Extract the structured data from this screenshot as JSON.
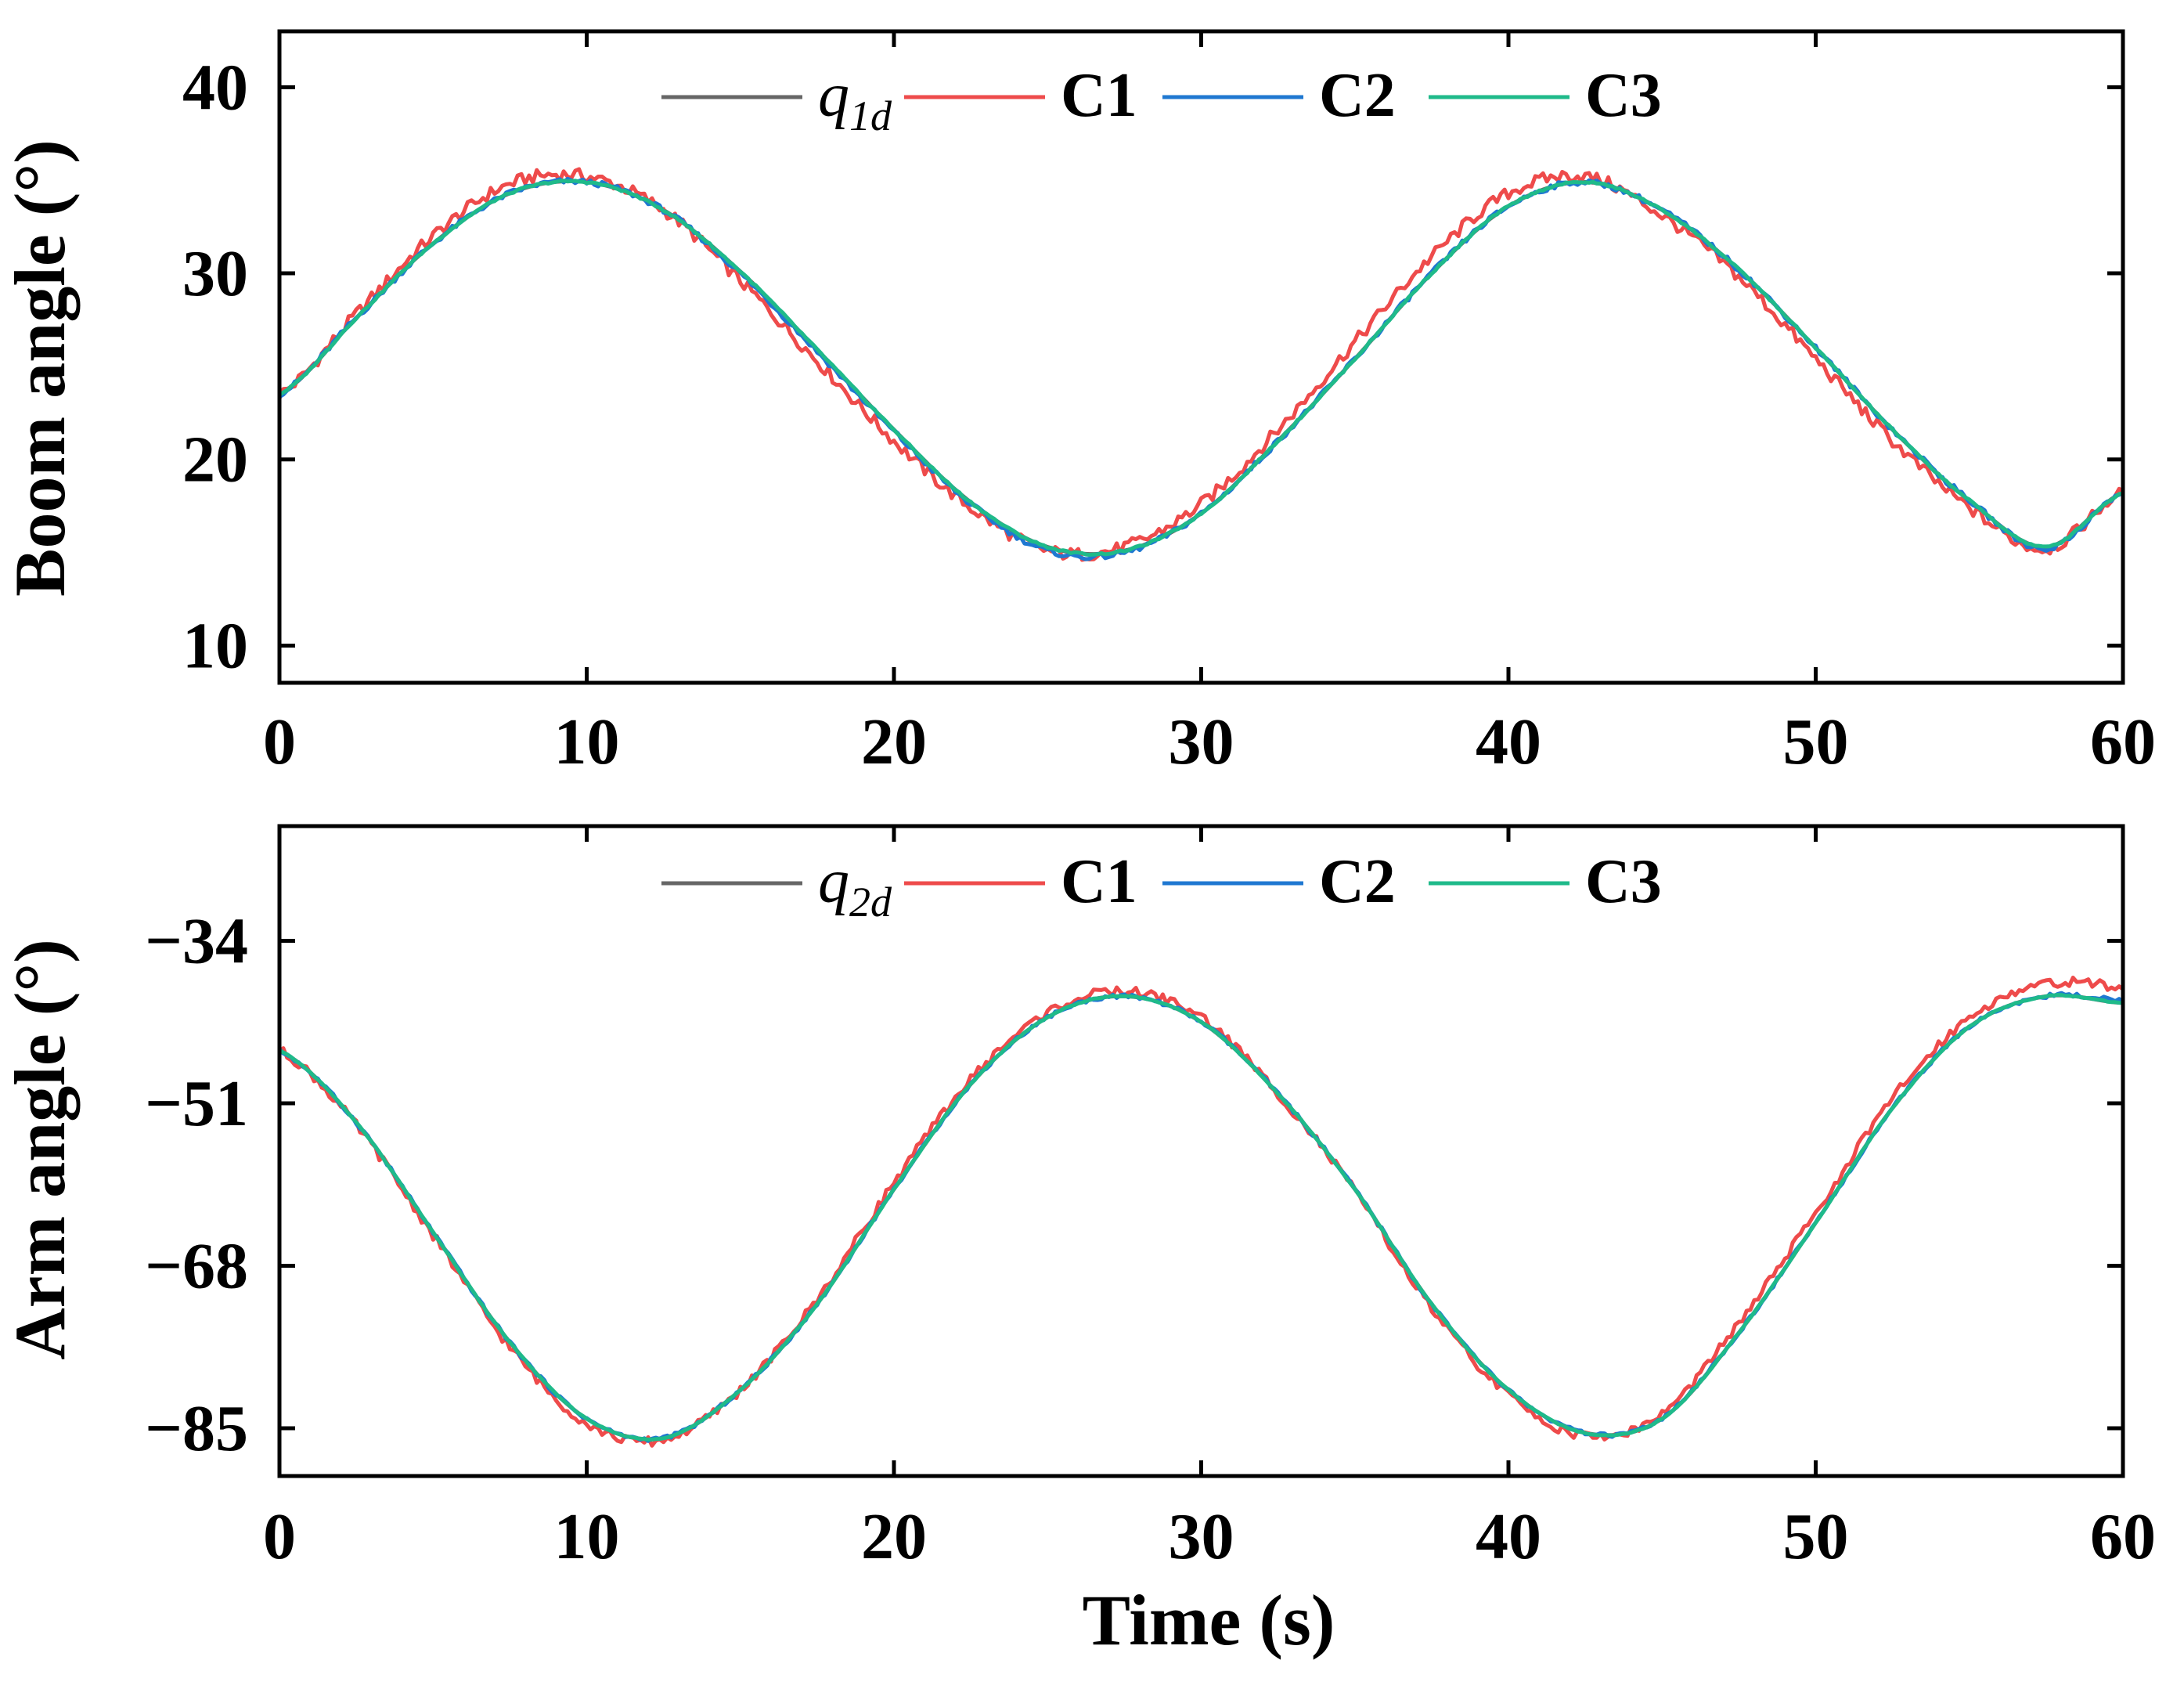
{
  "chart_data": [
    {
      "type": "line",
      "ylabel": "Boom angle (°)",
      "xlabel": "",
      "xlim": [
        0,
        60
      ],
      "ylim": [
        8,
        43
      ],
      "xticks": [
        "0",
        "10",
        "20",
        "30",
        "40",
        "50",
        "60"
      ],
      "yticks": [
        "40",
        "30",
        "20",
        "10"
      ],
      "legend": {
        "placement": "top-center",
        "entries": [
          {
            "name": "q",
            "sub": "1d",
            "color": "#666666"
          },
          {
            "name": "C1",
            "color": "#ee4b4b"
          },
          {
            "name": "C2",
            "color": "#1f78d1"
          },
          {
            "name": "C3",
            "color": "#1fba8a"
          }
        ]
      },
      "series": [
        {
          "name": "q1d",
          "color": "#666666",
          "noise": 0,
          "x": [
            0,
            2.5,
            5,
            7.5,
            10,
            12.5,
            15,
            17.5,
            20,
            22.5,
            25,
            27.5,
            30,
            32.5,
            35,
            37.5,
            40,
            42.5,
            45,
            47.5,
            50,
            52.5,
            55,
            57.5,
            60
          ],
          "y": [
            23.5,
            27.6,
            31.6,
            34.3,
            34.9,
            33.4,
            30.1,
            25.9,
            21.6,
            17.7,
            15.3,
            15.1,
            17.1,
            21.0,
            25.4,
            30.0,
            33.6,
            34.9,
            33.4,
            30.2,
            26.0,
            21.6,
            17.8,
            15.3,
            18.2
          ]
        },
        {
          "name": "C1",
          "color": "#ee4b4b",
          "noise": 0.35,
          "x": [
            0,
            2.5,
            5,
            7.5,
            10,
            12.5,
            15,
            17.5,
            20,
            22.5,
            25,
            27.5,
            30,
            32.5,
            35,
            37.5,
            40,
            42.5,
            45,
            47.5,
            50,
            52.5,
            55,
            57.5,
            60
          ],
          "y": [
            23.5,
            27.8,
            32.0,
            34.8,
            35.2,
            33.4,
            29.6,
            25.3,
            21.0,
            17.4,
            15.1,
            15.3,
            17.6,
            21.6,
            26.3,
            30.9,
            34.3,
            35.2,
            33.1,
            29.8,
            25.4,
            21.0,
            17.4,
            15.2,
            18.2
          ]
        },
        {
          "name": "C2",
          "color": "#1f78d1",
          "noise": 0.15,
          "x": [
            0,
            2.5,
            5,
            7.5,
            10,
            12.5,
            15,
            17.5,
            20,
            22.5,
            25,
            27.5,
            30,
            32.5,
            35,
            37.5,
            40,
            42.5,
            45,
            47.5,
            50,
            52.5,
            55,
            57.5,
            60
          ],
          "y": [
            23.5,
            27.6,
            31.6,
            34.3,
            34.9,
            33.4,
            30.0,
            25.8,
            21.5,
            17.6,
            15.1,
            15.0,
            17.1,
            21.0,
            25.4,
            30.0,
            33.6,
            34.9,
            33.4,
            30.2,
            26.0,
            21.6,
            17.8,
            15.2,
            18.2
          ]
        },
        {
          "name": "C3",
          "color": "#1fba8a",
          "noise": 0.05,
          "x": [
            0,
            2.5,
            5,
            7.5,
            10,
            12.5,
            15,
            17.5,
            20,
            22.5,
            25,
            27.5,
            30,
            32.5,
            35,
            37.5,
            40,
            42.5,
            45,
            47.5,
            50,
            52.5,
            55,
            57.5,
            60
          ],
          "y": [
            23.5,
            27.6,
            31.6,
            34.3,
            34.9,
            33.4,
            30.1,
            25.9,
            21.6,
            17.7,
            15.3,
            15.1,
            17.1,
            21.0,
            25.4,
            30.0,
            33.6,
            34.9,
            33.4,
            30.2,
            26.0,
            21.6,
            17.8,
            15.3,
            18.2
          ]
        }
      ]
    },
    {
      "type": "line",
      "ylabel": "Arm angle (°)",
      "xlabel": "Time (s)",
      "xlim": [
        0,
        60
      ],
      "ylim": [
        -90,
        -22
      ],
      "xticks": [
        "0",
        "10",
        "20",
        "30",
        "40",
        "50",
        "60"
      ],
      "yticks": [
        "-34",
        "-51",
        "-68",
        "-85"
      ],
      "legend": {
        "placement": "top-center",
        "entries": [
          {
            "name": "q",
            "sub": "2d",
            "color": "#666666"
          },
          {
            "name": "C1",
            "color": "#ee4b4b"
          },
          {
            "name": "C2",
            "color": "#1f78d1"
          },
          {
            "name": "C3",
            "color": "#1fba8a"
          }
        ]
      },
      "series": [
        {
          "name": "q2d",
          "color": "#666666",
          "noise": 0,
          "x": [
            0,
            2.5,
            5,
            7.5,
            10,
            12.5,
            15,
            17.5,
            20,
            22.5,
            25,
            27.5,
            30,
            32.5,
            35,
            37.5,
            40,
            42.5,
            45,
            47.5,
            50,
            52.5,
            55,
            57.5,
            60
          ],
          "y": [
            -45.5,
            -53.0,
            -64.5,
            -76.0,
            -84.0,
            -86.0,
            -81.0,
            -72.0,
            -60.0,
            -49.0,
            -42.0,
            -39.8,
            -42.5,
            -50.0,
            -60.0,
            -72.0,
            -81.0,
            -85.5,
            -84.0,
            -75.0,
            -63.5,
            -51.5,
            -43.0,
            -39.8,
            -40.5
          ]
        },
        {
          "name": "C1",
          "color": "#ee4b4b",
          "noise": 0.5,
          "x": [
            0,
            2.5,
            5,
            7.5,
            10,
            12.5,
            15,
            17.5,
            20,
            22.5,
            25,
            27.5,
            30,
            32.5,
            35,
            37.5,
            40,
            42.5,
            45,
            47.5,
            50,
            52.5,
            55,
            57.5,
            60
          ],
          "y": [
            -45.5,
            -53.3,
            -64.8,
            -76.5,
            -84.5,
            -86.2,
            -81.0,
            -71.5,
            -59.3,
            -48.5,
            -41.5,
            -39.3,
            -42.0,
            -50.0,
            -60.2,
            -72.5,
            -81.5,
            -85.8,
            -83.5,
            -74.0,
            -62.5,
            -50.5,
            -42.0,
            -38.5,
            -38.8
          ]
        },
        {
          "name": "C2",
          "color": "#1f78d1",
          "noise": 0.2,
          "x": [
            0,
            2.5,
            5,
            7.5,
            10,
            12.5,
            15,
            17.5,
            20,
            22.5,
            25,
            27.5,
            30,
            32.5,
            35,
            37.5,
            40,
            42.5,
            45,
            47.5,
            50,
            52.5,
            55,
            57.5,
            60
          ],
          "y": [
            -45.5,
            -53.0,
            -64.5,
            -76.0,
            -84.0,
            -86.0,
            -81.0,
            -72.0,
            -60.0,
            -49.0,
            -42.0,
            -39.8,
            -42.5,
            -50.0,
            -60.0,
            -72.0,
            -81.0,
            -85.5,
            -84.0,
            -75.0,
            -63.5,
            -51.5,
            -43.0,
            -39.8,
            -40.2
          ]
        },
        {
          "name": "C3",
          "color": "#1fba8a",
          "noise": 0.05,
          "x": [
            0,
            2.5,
            5,
            7.5,
            10,
            12.5,
            15,
            17.5,
            20,
            22.5,
            25,
            27.5,
            30,
            32.5,
            35,
            37.5,
            40,
            42.5,
            45,
            47.5,
            50,
            52.5,
            55,
            57.5,
            60
          ],
          "y": [
            -45.5,
            -53.0,
            -64.5,
            -76.0,
            -84.0,
            -86.0,
            -81.0,
            -72.0,
            -60.0,
            -49.0,
            -42.0,
            -39.8,
            -42.5,
            -50.0,
            -60.0,
            -72.0,
            -81.0,
            -85.5,
            -84.0,
            -75.0,
            -63.5,
            -51.5,
            -43.0,
            -39.8,
            -40.5
          ]
        }
      ]
    }
  ]
}
